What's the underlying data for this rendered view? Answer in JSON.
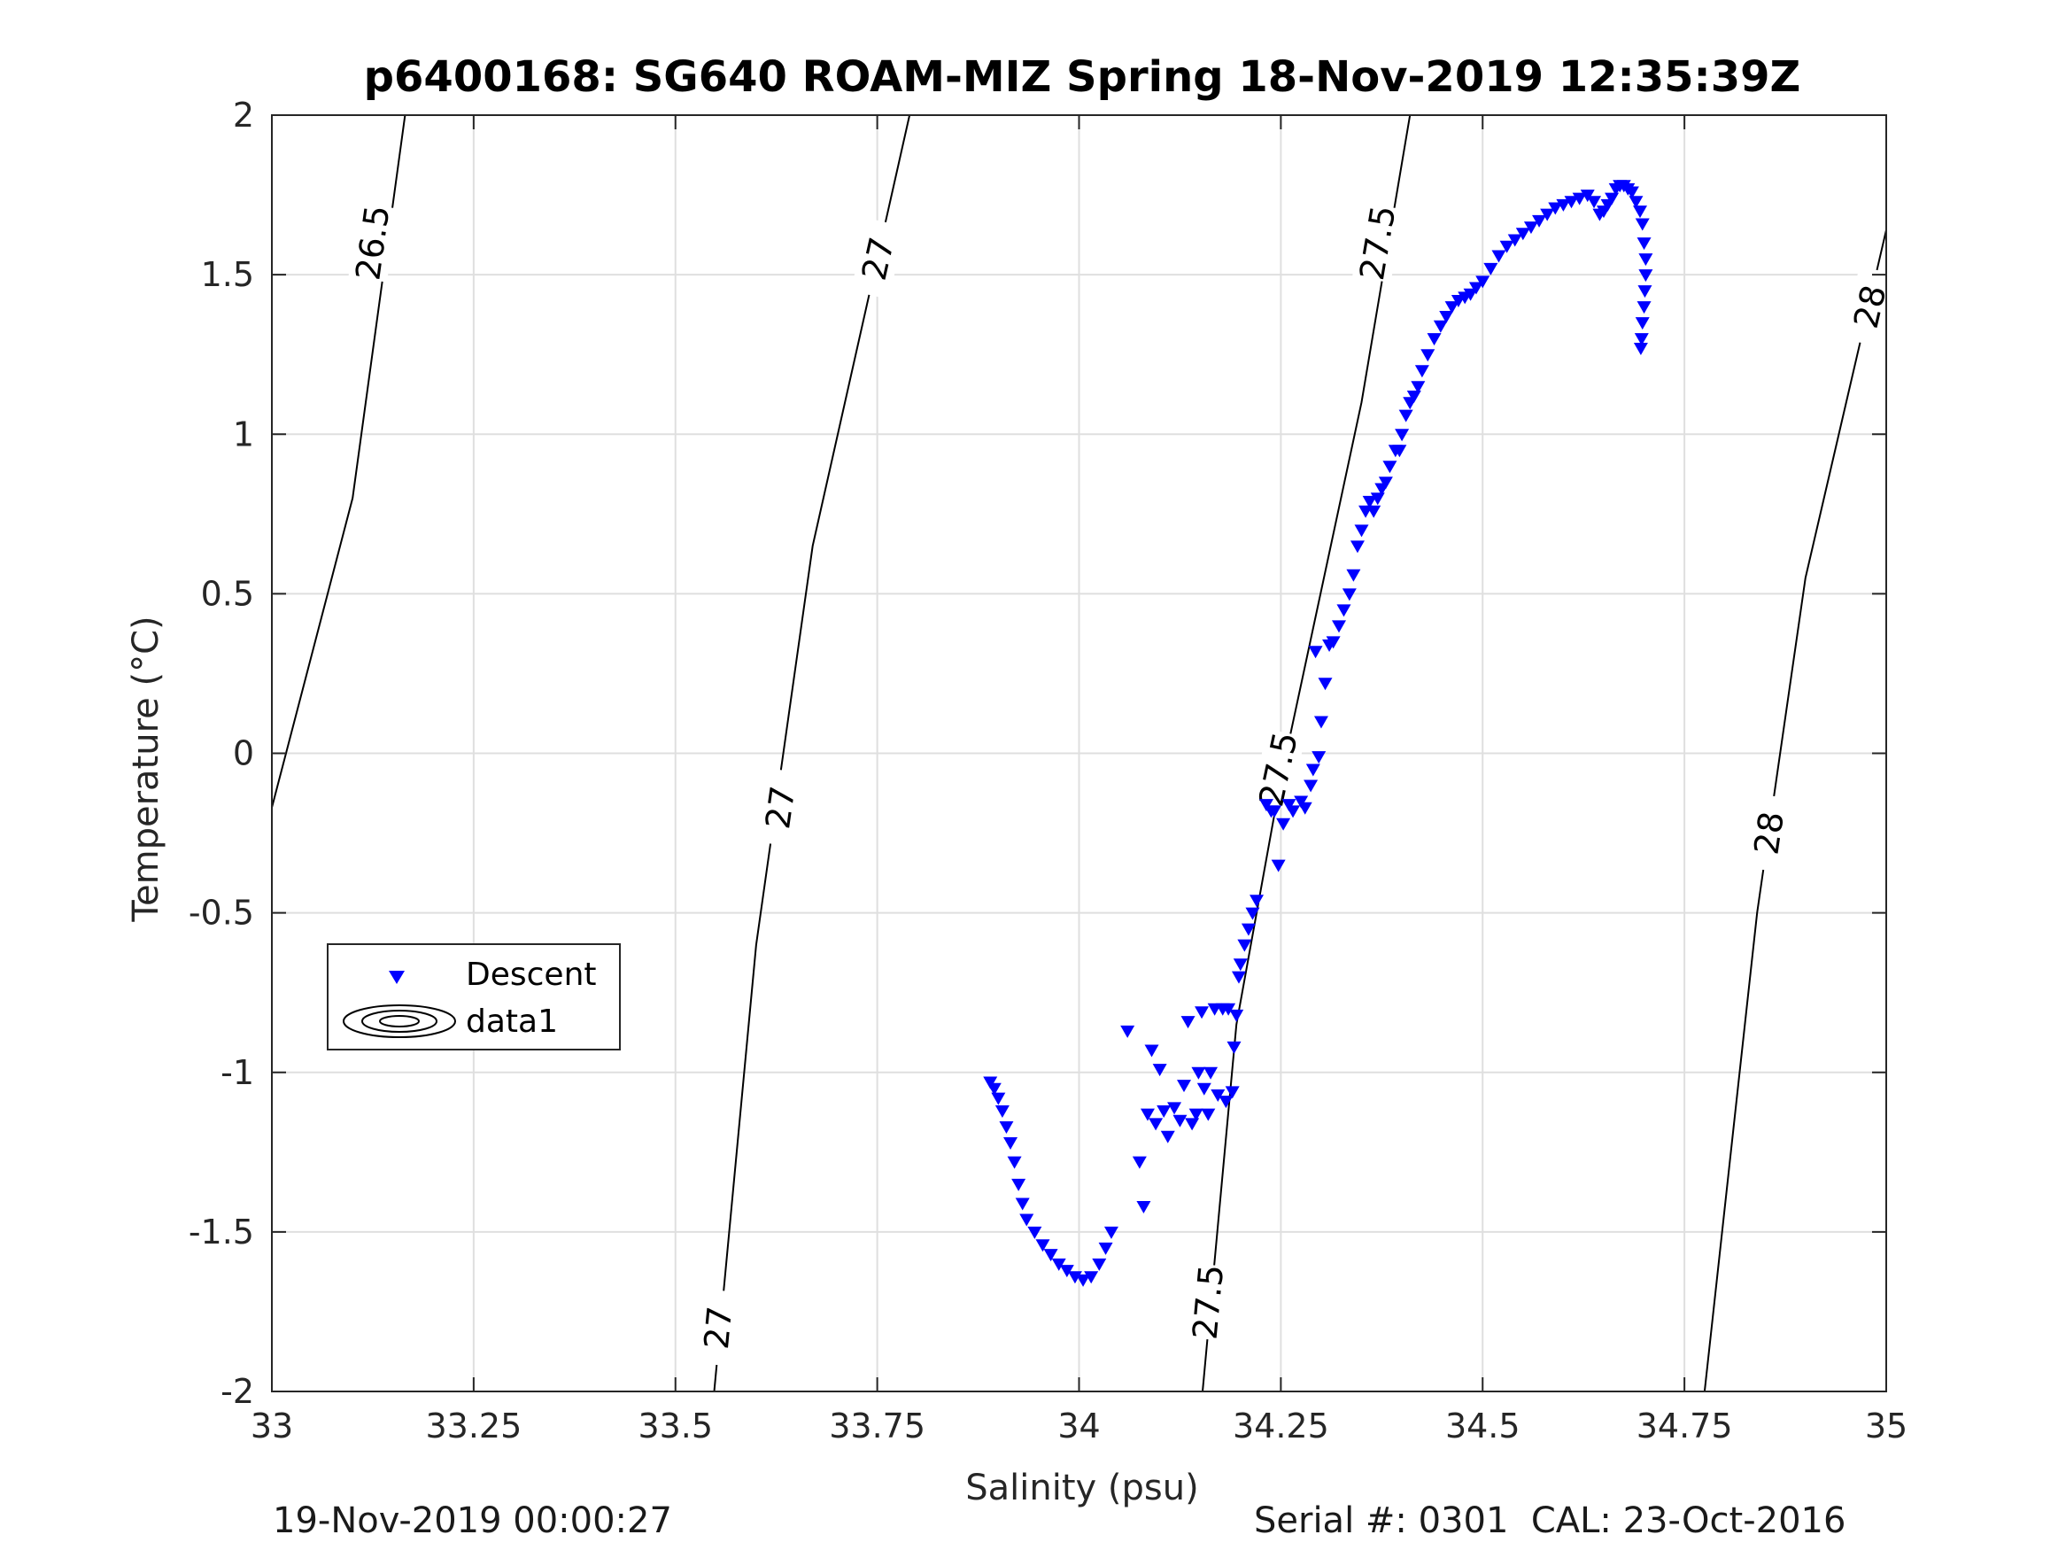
{
  "chart_data": {
    "type": "scatter",
    "title": "p6400168: SG640 ROAM-MIZ Spring 18-Nov-2019 12:35:39Z",
    "xlabel": "Salinity (psu)",
    "ylabel": "Temperature (°C)",
    "xlim": [
      33,
      35
    ],
    "ylim": [
      -2,
      2
    ],
    "grid": true,
    "x_ticks": [
      33,
      33.25,
      33.5,
      33.75,
      34,
      34.25,
      34.5,
      34.75,
      35
    ],
    "x_tick_labels": [
      "33",
      "33.25",
      "33.5",
      "33.75",
      "34",
      "34.25",
      "34.5",
      "34.75",
      "35"
    ],
    "y_ticks": [
      -2,
      -1.5,
      -1,
      -0.5,
      0,
      0.5,
      1,
      1.5,
      2
    ],
    "y_tick_labels": [
      "-2",
      "-1.5",
      "-1",
      "-0.5",
      "0",
      "0.5",
      "1",
      "1.5",
      "2"
    ],
    "legend": {
      "placement": "left",
      "entries": [
        {
          "label": "Descent",
          "marker": "triangle-down",
          "color": "#0000ff"
        },
        {
          "label": "data1",
          "marker": "contour",
          "color": "#000000"
        }
      ]
    },
    "contours": [
      {
        "level": "26.5",
        "points": [
          [
            33.0,
            -0.17
          ],
          [
            33.1,
            0.8
          ],
          [
            33.165,
            2.0
          ]
        ],
        "labels": [
          {
            "text": "26.5",
            "x": 33.125,
            "y": 1.6
          }
        ]
      },
      {
        "level": "27",
        "points": [
          [
            33.548,
            -2.0
          ],
          [
            33.6,
            -0.6
          ],
          [
            33.67,
            0.65
          ],
          [
            33.79,
            2.0
          ]
        ],
        "labels": [
          {
            "text": "27",
            "x": 33.553,
            "y": -1.8
          },
          {
            "text": "27",
            "x": 33.63,
            "y": -0.17
          },
          {
            "text": "27",
            "x": 33.751,
            "y": 1.55
          }
        ]
      },
      {
        "level": "27.5",
        "points": [
          [
            34.153,
            -2.0
          ],
          [
            34.195,
            -0.85
          ],
          [
            34.25,
            -0.08
          ],
          [
            34.35,
            1.1
          ],
          [
            34.41,
            2.0
          ]
        ],
        "labels": [
          {
            "text": "27.5",
            "x": 34.16,
            "y": -1.72
          },
          {
            "text": "27.5",
            "x": 34.247,
            "y": -0.05
          },
          {
            "text": "27.5",
            "x": 34.37,
            "y": 1.6
          }
        ]
      },
      {
        "level": "28",
        "points": [
          [
            34.775,
            -2.0
          ],
          [
            34.84,
            -0.5
          ],
          [
            34.9,
            0.55
          ],
          [
            35.0,
            1.64
          ]
        ],
        "labels": [
          {
            "text": "28",
            "x": 34.855,
            "y": -0.25
          },
          {
            "text": "28",
            "x": 34.98,
            "y": 1.4
          }
        ]
      }
    ],
    "series": [
      {
        "name": "Descent",
        "marker": "triangle-down",
        "color": "#0000ff",
        "points": [
          [
            33.89,
            -1.03
          ],
          [
            33.895,
            -1.05
          ],
          [
            33.9,
            -1.08
          ],
          [
            33.905,
            -1.12
          ],
          [
            33.91,
            -1.17
          ],
          [
            33.915,
            -1.22
          ],
          [
            33.92,
            -1.28
          ],
          [
            33.925,
            -1.35
          ],
          [
            33.93,
            -1.41
          ],
          [
            33.935,
            -1.46
          ],
          [
            33.945,
            -1.5
          ],
          [
            33.955,
            -1.54
          ],
          [
            33.965,
            -1.57
          ],
          [
            33.975,
            -1.6
          ],
          [
            33.985,
            -1.62
          ],
          [
            33.995,
            -1.64
          ],
          [
            34.005,
            -1.65
          ],
          [
            34.015,
            -1.64
          ],
          [
            34.025,
            -1.6
          ],
          [
            34.033,
            -1.55
          ],
          [
            34.04,
            -1.5
          ],
          [
            34.06,
            -0.87
          ],
          [
            34.075,
            -1.28
          ],
          [
            34.08,
            -1.42
          ],
          [
            34.085,
            -1.13
          ],
          [
            34.09,
            -0.93
          ],
          [
            34.095,
            -1.16
          ],
          [
            34.1,
            -0.99
          ],
          [
            34.105,
            -1.12
          ],
          [
            34.11,
            -1.2
          ],
          [
            34.118,
            -1.11
          ],
          [
            34.125,
            -1.15
          ],
          [
            34.13,
            -1.04
          ],
          [
            34.135,
            -0.84
          ],
          [
            34.14,
            -1.16
          ],
          [
            34.145,
            -1.13
          ],
          [
            34.148,
            -1.0
          ],
          [
            34.152,
            -0.81
          ],
          [
            34.155,
            -1.05
          ],
          [
            34.16,
            -1.13
          ],
          [
            34.163,
            -1.0
          ],
          [
            34.168,
            -0.8
          ],
          [
            34.172,
            -1.07
          ],
          [
            34.178,
            -0.8
          ],
          [
            34.182,
            -1.09
          ],
          [
            34.185,
            -0.8
          ],
          [
            34.19,
            -1.06
          ],
          [
            34.192,
            -0.92
          ],
          [
            34.195,
            -0.82
          ],
          [
            34.198,
            -0.7
          ],
          [
            34.2,
            -0.66
          ],
          [
            34.205,
            -0.6
          ],
          [
            34.21,
            -0.55
          ],
          [
            34.215,
            -0.5
          ],
          [
            34.22,
            -0.46
          ],
          [
            34.232,
            -0.16
          ],
          [
            34.238,
            -0.18
          ],
          [
            34.242,
            -0.18
          ],
          [
            34.247,
            -0.35
          ],
          [
            34.253,
            -0.22
          ],
          [
            34.26,
            -0.16
          ],
          [
            34.265,
            -0.18
          ],
          [
            34.275,
            -0.15
          ],
          [
            34.28,
            -0.17
          ],
          [
            34.287,
            -0.1
          ],
          [
            34.29,
            -0.05
          ],
          [
            34.293,
            0.32
          ],
          [
            34.297,
            -0.01
          ],
          [
            34.3,
            0.1
          ],
          [
            34.305,
            0.22
          ],
          [
            34.31,
            0.34
          ],
          [
            34.315,
            0.35
          ],
          [
            34.322,
            0.4
          ],
          [
            34.328,
            0.45
          ],
          [
            34.335,
            0.5
          ],
          [
            34.34,
            0.56
          ],
          [
            34.345,
            0.65
          ],
          [
            34.35,
            0.7
          ],
          [
            34.355,
            0.76
          ],
          [
            34.36,
            0.79
          ],
          [
            34.365,
            0.76
          ],
          [
            34.37,
            0.8
          ],
          [
            34.375,
            0.83
          ],
          [
            34.38,
            0.85
          ],
          [
            34.385,
            0.9
          ],
          [
            34.392,
            0.95
          ],
          [
            34.397,
            0.95
          ],
          [
            34.4,
            1.0
          ],
          [
            34.405,
            1.06
          ],
          [
            34.41,
            1.1
          ],
          [
            34.415,
            1.12
          ],
          [
            34.42,
            1.15
          ],
          [
            34.425,
            1.2
          ],
          [
            34.432,
            1.25
          ],
          [
            34.44,
            1.3
          ],
          [
            34.448,
            1.34
          ],
          [
            34.455,
            1.37
          ],
          [
            34.462,
            1.4
          ],
          [
            34.47,
            1.42
          ],
          [
            34.478,
            1.43
          ],
          [
            34.485,
            1.44
          ],
          [
            34.492,
            1.46
          ],
          [
            34.5,
            1.48
          ],
          [
            34.51,
            1.52
          ],
          [
            34.52,
            1.56
          ],
          [
            34.53,
            1.59
          ],
          [
            34.54,
            1.61
          ],
          [
            34.55,
            1.63
          ],
          [
            34.56,
            1.65
          ],
          [
            34.57,
            1.67
          ],
          [
            34.58,
            1.69
          ],
          [
            34.59,
            1.71
          ],
          [
            34.6,
            1.72
          ],
          [
            34.61,
            1.73
          ],
          [
            34.62,
            1.74
          ],
          [
            34.63,
            1.75
          ],
          [
            34.638,
            1.73
          ],
          [
            34.645,
            1.69
          ],
          [
            34.65,
            1.7
          ],
          [
            34.655,
            1.72
          ],
          [
            34.66,
            1.74
          ],
          [
            34.665,
            1.77
          ],
          [
            34.67,
            1.78
          ],
          [
            34.675,
            1.78
          ],
          [
            34.68,
            1.77
          ],
          [
            34.685,
            1.76
          ],
          [
            34.69,
            1.73
          ],
          [
            34.695,
            1.7
          ],
          [
            34.698,
            1.66
          ],
          [
            34.7,
            1.6
          ],
          [
            34.702,
            1.55
          ],
          [
            34.702,
            1.5
          ],
          [
            34.701,
            1.45
          ],
          [
            34.7,
            1.4
          ],
          [
            34.698,
            1.35
          ],
          [
            34.697,
            1.3
          ],
          [
            34.696,
            1.27
          ]
        ]
      }
    ],
    "footer_left": "19-Nov-2019 00:00:27",
    "footer_right": "Serial #: 0301  CAL: 23-Oct-2016"
  }
}
